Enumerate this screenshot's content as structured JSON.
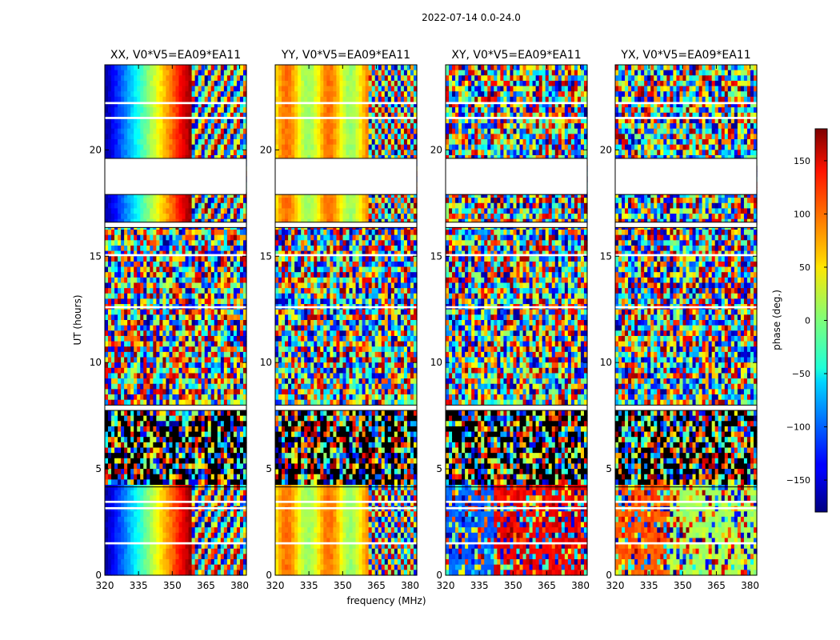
{
  "chart_data": {
    "type": "heatmap",
    "suptitle": "2022-07-14 0.0-24.0",
    "xlabel": "frequency (MHz)",
    "ylabel": "UT (hours)",
    "xlim": [
      320,
      383
    ],
    "ylim": [
      0,
      24
    ],
    "xticks": [
      320,
      335,
      350,
      365,
      380
    ],
    "yticks": [
      0,
      5,
      10,
      15,
      20
    ],
    "panels": [
      {
        "title": "XX, V0*V5=EA09*EA11",
        "pattern": "xx"
      },
      {
        "title": "YY, V0*V5=EA09*EA11",
        "pattern": "yy"
      },
      {
        "title": "XY, V0*V5=EA09*EA11",
        "pattern": "xy"
      },
      {
        "title": "YX, V0*V5=EA09*EA11",
        "pattern": "yx"
      }
    ],
    "flagged_ut_ranges": [
      [
        17.9,
        19.6
      ],
      [
        16.35,
        16.6
      ],
      [
        7.75,
        8.0
      ],
      [
        1.45,
        1.55
      ],
      [
        3.1,
        3.2
      ],
      [
        3.4,
        3.5
      ],
      [
        12.55,
        12.65
      ],
      [
        15.0,
        15.1
      ],
      [
        21.45,
        21.55
      ],
      [
        22.15,
        22.25
      ]
    ],
    "noisy_ut_range": [
      4.15,
      7.75
    ],
    "colorbar": {
      "label": "phase (deg.)",
      "range": [
        -180,
        180
      ],
      "ticks": [
        150,
        100,
        50,
        0,
        -50,
        -100,
        -150
      ],
      "tick_labels": [
        "150",
        "100",
        "50",
        "0",
        "−50",
        "−100",
        "−150"
      ],
      "colormap": "jet"
    }
  }
}
